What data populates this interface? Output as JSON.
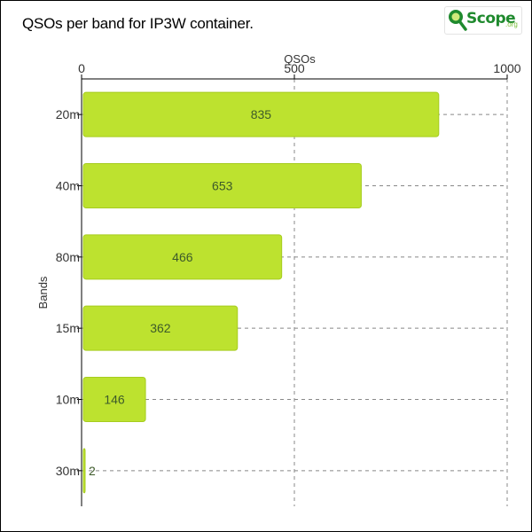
{
  "title": "QSOs per band for IP3W container.",
  "logo": {
    "text": "Scope",
    "sub": ".org",
    "icon": "magnifier-icon"
  },
  "colors": {
    "bar": "#bde22f",
    "bar_edge": "#a6cc1f",
    "grid": "#888888",
    "axis": "#000000"
  },
  "chart_data": {
    "type": "bar",
    "orientation": "horizontal",
    "title": "QSOs per band for IP3W container.",
    "xlabel": "QSOs",
    "ylabel": "Bands",
    "categories": [
      "20m",
      "40m",
      "80m",
      "15m",
      "10m",
      "30m"
    ],
    "values": [
      835,
      653,
      466,
      362,
      146,
      2
    ],
    "xlim": [
      0,
      1000
    ],
    "xticks": [
      0,
      500,
      1000
    ],
    "grid": true,
    "x_axis_position": "top"
  }
}
